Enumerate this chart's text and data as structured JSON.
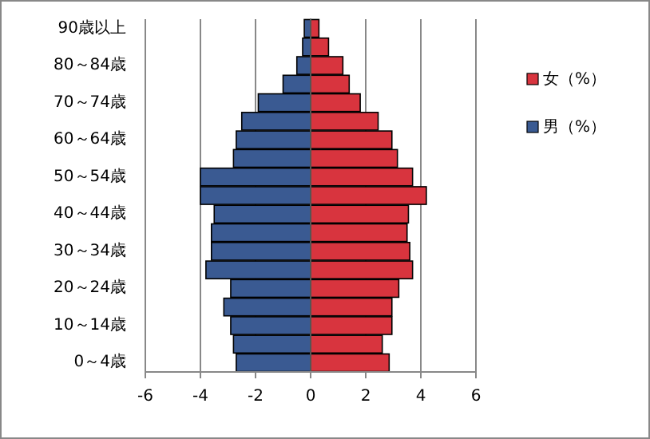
{
  "chart_data": {
    "type": "bar",
    "orientation": "horizontal",
    "stacked": true,
    "categories": [
      "90歳以上",
      null,
      "80～84歳",
      null,
      "70～74歳",
      null,
      "60～64歳",
      null,
      "50～54歳",
      null,
      "40～44歳",
      null,
      "30～34歳",
      null,
      "20～24歳",
      null,
      "10～14歳",
      null,
      "0～4歳"
    ],
    "series": [
      {
        "name": "男（%）",
        "color": "#3a5a92",
        "values": [
          -0.23,
          -0.29,
          -0.5,
          -1.0,
          -1.9,
          -2.5,
          -2.7,
          -2.8,
          -4.0,
          -4.0,
          -3.5,
          -3.6,
          -3.6,
          -3.8,
          -2.9,
          -3.15,
          -2.9,
          -2.8,
          -2.7
        ]
      },
      {
        "name": "女（%）",
        "color": "#d8343e",
        "values": [
          0.3,
          0.65,
          1.17,
          1.4,
          1.8,
          2.45,
          2.95,
          3.15,
          3.7,
          4.2,
          3.55,
          3.5,
          3.6,
          3.7,
          3.2,
          2.95,
          2.95,
          2.6,
          2.85
        ]
      }
    ],
    "xlim": [
      -6,
      6
    ],
    "xticks": [
      -6,
      -4,
      -2,
      0,
      2,
      4,
      6
    ],
    "grid": "x",
    "legend": "right"
  }
}
